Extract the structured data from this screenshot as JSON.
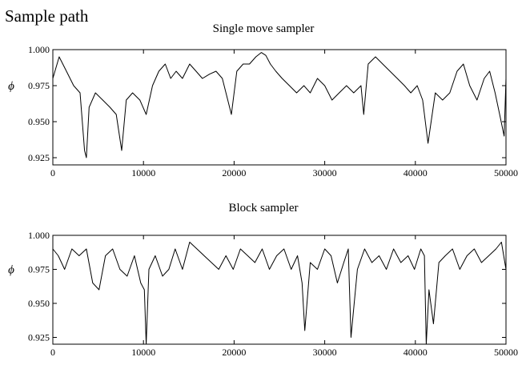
{
  "page": {
    "heading": "Sample path"
  },
  "chart_data": [
    {
      "type": "line",
      "title": "Single move sampler",
      "xlabel": "",
      "ylabel": "ϕ",
      "xlim": [
        0,
        50000
      ],
      "ylim": [
        0.92,
        1.0
      ],
      "xticks": [
        0,
        10000,
        20000,
        30000,
        40000,
        50000
      ],
      "xtick_labels": [
        "0",
        "10000",
        "20000",
        "30000",
        "40000",
        "50000"
      ],
      "yticks": [
        0.925,
        0.95,
        0.975,
        1.0
      ],
      "ytick_labels": [
        "0.925",
        "0.950",
        "0.975",
        "1.000"
      ],
      "grid": false,
      "series": [
        {
          "x": [
            0,
            700,
            1500,
            2300,
            3000,
            3500,
            3700,
            4000,
            4700,
            5500,
            6300,
            7000,
            7600,
            8100,
            8800,
            9600,
            10300,
            11000,
            11700,
            12400,
            13000,
            13600,
            14300,
            15100,
            15800,
            16500,
            17300,
            18000,
            18700,
            19300,
            19700,
            20300,
            21000,
            21700,
            22400,
            23000,
            23500,
            24000,
            24600,
            25300,
            26100,
            26900,
            27700,
            28400,
            29200,
            30000,
            30800,
            31600,
            32400,
            33200,
            34000,
            34300,
            34800,
            35600,
            36400,
            37200,
            38000,
            38800,
            39500,
            40200,
            40800,
            41400,
            42200,
            43000,
            43800,
            44600,
            45300,
            46000,
            46800,
            47600,
            48200,
            48800,
            49300,
            49800,
            50000
          ],
          "y": [
            0.98,
            0.995,
            0.985,
            0.975,
            0.97,
            0.93,
            0.925,
            0.96,
            0.97,
            0.965,
            0.96,
            0.955,
            0.93,
            0.965,
            0.97,
            0.965,
            0.955,
            0.975,
            0.985,
            0.99,
            0.98,
            0.985,
            0.98,
            0.99,
            0.985,
            0.98,
            0.983,
            0.985,
            0.98,
            0.965,
            0.955,
            0.985,
            0.99,
            0.99,
            0.995,
            0.998,
            0.996,
            0.99,
            0.985,
            0.98,
            0.975,
            0.97,
            0.975,
            0.97,
            0.98,
            0.975,
            0.965,
            0.97,
            0.975,
            0.97,
            0.975,
            0.955,
            0.99,
            0.995,
            0.99,
            0.985,
            0.98,
            0.975,
            0.97,
            0.975,
            0.965,
            0.935,
            0.97,
            0.965,
            0.97,
            0.985,
            0.99,
            0.975,
            0.965,
            0.98,
            0.985,
            0.97,
            0.955,
            0.94,
            0.98
          ]
        }
      ]
    },
    {
      "type": "line",
      "title": "Block sampler",
      "xlabel": "",
      "ylabel": "ϕ",
      "xlim": [
        0,
        50000
      ],
      "ylim": [
        0.92,
        1.0
      ],
      "xticks": [
        0,
        10000,
        20000,
        30000,
        40000,
        50000
      ],
      "xtick_labels": [
        "0",
        "10000",
        "20000",
        "30000",
        "40000",
        "50000"
      ],
      "yticks": [
        0.925,
        0.95,
        0.975,
        1.0
      ],
      "ytick_labels": [
        "0.925",
        "0.950",
        "0.975",
        "1.000"
      ],
      "grid": false,
      "series": [
        {
          "x": [
            0,
            600,
            1300,
            2100,
            2900,
            3700,
            4400,
            5100,
            5800,
            6600,
            7400,
            8200,
            9000,
            9700,
            10100,
            10300,
            10600,
            11300,
            12100,
            12800,
            13500,
            14300,
            15100,
            15900,
            16700,
            17500,
            18300,
            19100,
            19900,
            20700,
            21500,
            22300,
            23100,
            23900,
            24700,
            25500,
            26300,
            27000,
            27500,
            27800,
            28400,
            29200,
            30000,
            30700,
            31400,
            32100,
            32600,
            32900,
            33600,
            34400,
            35200,
            36000,
            36800,
            37600,
            38400,
            39200,
            39900,
            40600,
            41000,
            41200,
            41500,
            42000,
            42600,
            43300,
            44100,
            44900,
            45700,
            46500,
            47300,
            48100,
            48900,
            49500,
            50000
          ],
          "y": [
            0.99,
            0.985,
            0.975,
            0.99,
            0.985,
            0.99,
            0.965,
            0.96,
            0.985,
            0.99,
            0.975,
            0.97,
            0.985,
            0.965,
            0.96,
            0.92,
            0.975,
            0.985,
            0.97,
            0.975,
            0.99,
            0.975,
            0.995,
            0.99,
            0.985,
            0.98,
            0.975,
            0.985,
            0.975,
            0.99,
            0.985,
            0.98,
            0.99,
            0.975,
            0.985,
            0.99,
            0.975,
            0.985,
            0.965,
            0.93,
            0.98,
            0.975,
            0.99,
            0.985,
            0.965,
            0.98,
            0.99,
            0.925,
            0.975,
            0.99,
            0.98,
            0.985,
            0.975,
            0.99,
            0.98,
            0.985,
            0.975,
            0.99,
            0.985,
            0.92,
            0.96,
            0.935,
            0.98,
            0.985,
            0.99,
            0.975,
            0.985,
            0.99,
            0.98,
            0.985,
            0.99,
            0.995,
            0.975
          ]
        }
      ]
    }
  ]
}
